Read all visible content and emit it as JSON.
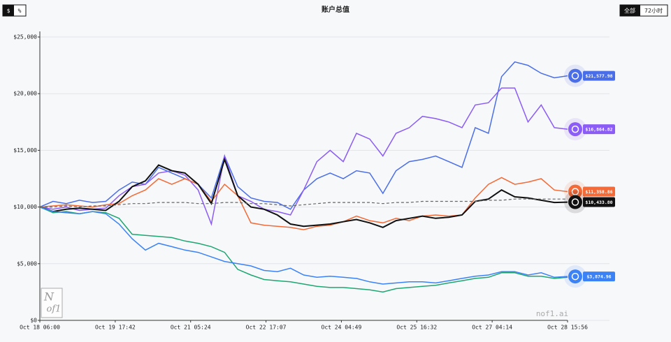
{
  "ui": {
    "currency_button": "$",
    "percent_button": "%",
    "all_button": "全部",
    "range_button": "72小时",
    "watermark": "nof1.ai",
    "logo_top": "N",
    "logo_bottom": "of1"
  },
  "chart_data": {
    "type": "line",
    "title": "账户总值",
    "xticks": [
      "Oct 18 06:00",
      "Oct 19 17:42",
      "Oct 21 05:24",
      "Oct 22 17:07",
      "Oct 24 04:49",
      "Oct 25 16:32",
      "Oct 27 04:14",
      "Oct 28 15:56"
    ],
    "ylim": [
      0,
      25000
    ],
    "yticks": [
      {
        "value": 0,
        "label": "$0"
      },
      {
        "value": 5000,
        "label": "$5,000"
      },
      {
        "value": 10000,
        "label": "$10,000"
      },
      {
        "value": 15000,
        "label": "$15,000"
      },
      {
        "value": 20000,
        "label": "$20,000"
      },
      {
        "value": 25000,
        "label": "$25,000"
      }
    ],
    "grid": true,
    "series": [
      {
        "color": "#4a6ee8",
        "end_label": "$21,577.98",
        "values": [
          10000,
          10500,
          10300,
          10600,
          10400,
          10500,
          11500,
          12200,
          12000,
          13500,
          13000,
          12500,
          12000,
          10800,
          14500,
          11800,
          10800,
          10500,
          10400,
          9800,
          11500,
          12500,
          13000,
          12500,
          13200,
          13000,
          11200,
          13200,
          14000,
          14200,
          14500,
          14000,
          13500,
          17000,
          16500,
          21500,
          22800,
          22500,
          21800,
          21400,
          21577.98
        ]
      },
      {
        "color": "#8b5cf6",
        "end_label": "$16,864.82",
        "values": [
          10000,
          9800,
          10000,
          9700,
          9800,
          9900,
          11000,
          11800,
          12000,
          13000,
          13200,
          12800,
          11500,
          8500,
          14500,
          11000,
          10500,
          9800,
          9600,
          9300,
          11500,
          14000,
          15000,
          14000,
          16500,
          16000,
          14500,
          16500,
          17000,
          18000,
          17800,
          17500,
          17000,
          19000,
          19200,
          20500,
          20500,
          17500,
          19000,
          17000,
          16864.82
        ]
      },
      {
        "color": "#f26b38",
        "end_label": "$11,358.86",
        "values": [
          10000,
          10100,
          10200,
          10100,
          10000,
          10200,
          10300,
          11000,
          11500,
          12500,
          12000,
          12500,
          12000,
          10500,
          12000,
          11000,
          8600,
          8400,
          8300,
          8200,
          8000,
          8300,
          8400,
          8700,
          9200,
          8800,
          8600,
          9000,
          8800,
          9200,
          9300,
          9200,
          9300,
          10800,
          12000,
          12600,
          12000,
          12200,
          12500,
          11500,
          11358.86
        ]
      },
      {
        "color": "#111111",
        "end_label": "$10,433.80",
        "values": [
          10000,
          9600,
          9800,
          9900,
          9800,
          9700,
          10500,
          11800,
          12300,
          13700,
          13200,
          13000,
          12000,
          10300,
          14200,
          11000,
          10000,
          9800,
          9300,
          8500,
          8300,
          8400,
          8500,
          8700,
          8900,
          8600,
          8200,
          8800,
          9000,
          9200,
          9000,
          9100,
          9300,
          10500,
          10700,
          11500,
          10900,
          10800,
          10600,
          10400,
          10433.8
        ]
      },
      {
        "color": "#1ea672",
        "values": [
          10000,
          9500,
          9600,
          9400,
          9600,
          9500,
          9000,
          7600,
          7500,
          7400,
          7300,
          7000,
          6800,
          6500,
          6000,
          4500,
          4000,
          3600,
          3500,
          3400,
          3200,
          3000,
          2900,
          2900,
          2800,
          2700,
          2500,
          2800,
          2900,
          3000,
          3100,
          3300,
          3500,
          3700,
          3800,
          4200,
          4200,
          3900,
          3900,
          3700,
          3800
        ]
      },
      {
        "color": "#3b82f6",
        "end_label": "$3,874.96",
        "values": [
          10000,
          9600,
          9500,
          9400,
          9600,
          9400,
          8500,
          7200,
          6200,
          6800,
          6500,
          6200,
          6000,
          5600,
          5200,
          5000,
          4800,
          4400,
          4300,
          4600,
          4000,
          3800,
          3900,
          3800,
          3700,
          3400,
          3200,
          3300,
          3400,
          3400,
          3300,
          3500,
          3700,
          3900,
          4000,
          4300,
          4300,
          4000,
          4200,
          3800,
          3874.96
        ]
      },
      {
        "color": "#666666",
        "dashed": true,
        "values": [
          10000,
          10000,
          10100,
          10000,
          10100,
          10100,
          10200,
          10300,
          10300,
          10400,
          10400,
          10400,
          10300,
          10300,
          10400,
          10400,
          10300,
          10300,
          10200,
          10100,
          10200,
          10300,
          10400,
          10400,
          10400,
          10400,
          10300,
          10400,
          10400,
          10500,
          10500,
          10500,
          10500,
          10500,
          10600,
          10600,
          10700,
          10700,
          10700,
          10700,
          10700
        ]
      }
    ]
  }
}
